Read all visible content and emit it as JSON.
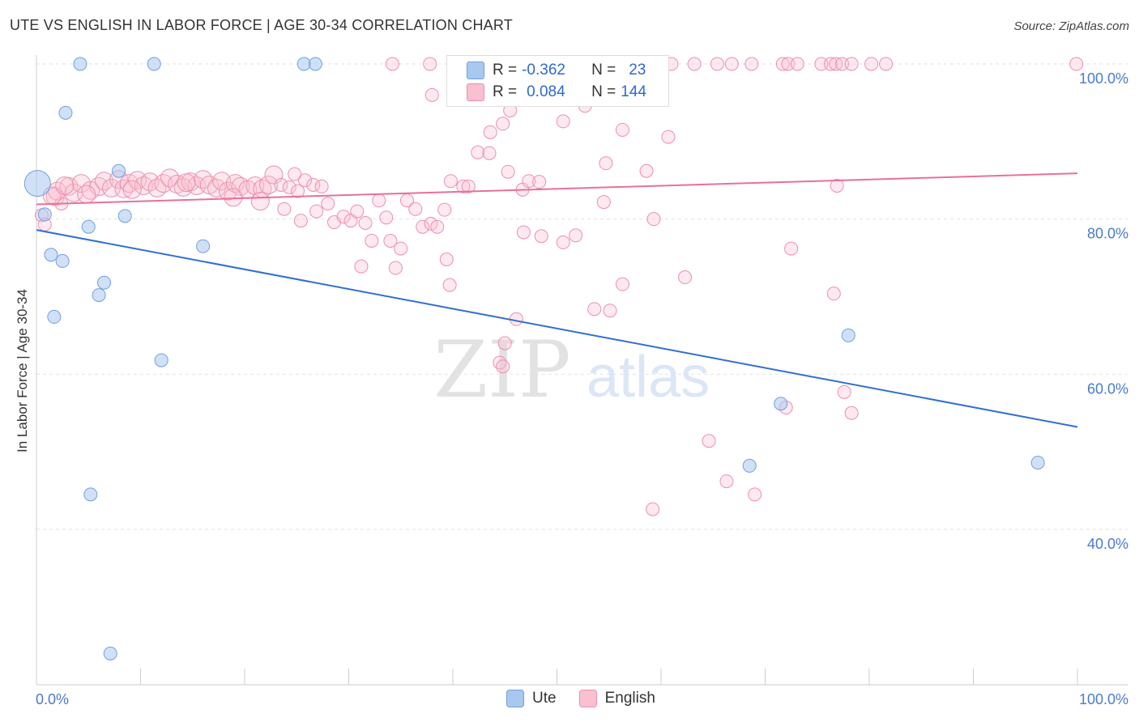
{
  "header": {
    "title": "UTE VS ENGLISH IN LABOR FORCE | AGE 30-34 CORRELATION CHART",
    "source": "Source: ZipAtlas.com"
  },
  "legend": {
    "rows": [
      {
        "r_label": "R =",
        "r_value": "-0.362",
        "n_label": "N =",
        "n_value": "23"
      },
      {
        "r_label": "R =",
        "r_value": "0.084",
        "n_label": "N =",
        "n_value": "144"
      }
    ],
    "series": [
      {
        "name": "Ute",
        "color": "#a9c8f0",
        "edge": "#6f9fe0"
      },
      {
        "name": "English",
        "color": "#f8c0d0",
        "edge": "#ec8fae"
      }
    ]
  },
  "watermark": {
    "part1": "ZIP",
    "part2": "atlas"
  },
  "chart_data": {
    "type": "scatter",
    "ylabel": "In Labor Force | Age 30-34",
    "xlim": [
      0,
      100
    ],
    "ylim": [
      20,
      100
    ],
    "x_tick_labels": [
      "0.0%",
      "100.0%"
    ],
    "y_ticks": [
      {
        "value": 100,
        "label": "100.0%"
      },
      {
        "value": 80,
        "label": "80.0%"
      },
      {
        "value": 60,
        "label": "60.0%"
      },
      {
        "value": 40,
        "label": "40.0%"
      }
    ],
    "grid": "horizontal dashed",
    "colors": {
      "ute_line": "#2f6fd0",
      "english_line": "#e87099"
    },
    "series": [
      {
        "name": "Ute",
        "trend": {
          "x": [
            0,
            100
          ],
          "y": [
            78.6,
            53.2
          ]
        },
        "points": [
          [
            4.2,
            100
          ],
          [
            11.3,
            100
          ],
          [
            25.7,
            100
          ],
          [
            26.8,
            100
          ],
          [
            2.8,
            93.7
          ],
          [
            0.1,
            84.6
          ],
          [
            7.9,
            86.2
          ],
          [
            0.8,
            80.6
          ],
          [
            8.5,
            80.4
          ],
          [
            5.0,
            79.0
          ],
          [
            16.0,
            76.5
          ],
          [
            1.4,
            75.4
          ],
          [
            2.5,
            74.6
          ],
          [
            6.5,
            71.8
          ],
          [
            6.0,
            70.2
          ],
          [
            1.7,
            67.4
          ],
          [
            12.0,
            61.8
          ],
          [
            78.0,
            65.0
          ],
          [
            71.5,
            56.2
          ],
          [
            68.5,
            48.2
          ],
          [
            96.2,
            48.6
          ],
          [
            5.2,
            44.5
          ],
          [
            7.1,
            24.0
          ]
        ]
      },
      {
        "name": "English",
        "trend": {
          "x": [
            0,
            100
          ],
          "y": [
            81.9,
            85.9
          ]
        },
        "points": [
          [
            51.7,
            100
          ],
          [
            54.5,
            100
          ],
          [
            55.4,
            100
          ],
          [
            58.3,
            100
          ],
          [
            61.0,
            100
          ],
          [
            63.2,
            100
          ],
          [
            65.4,
            100
          ],
          [
            66.8,
            100
          ],
          [
            68.7,
            100
          ],
          [
            71.7,
            100
          ],
          [
            72.2,
            100
          ],
          [
            73.1,
            100
          ],
          [
            75.4,
            100
          ],
          [
            76.3,
            100
          ],
          [
            76.8,
            100
          ],
          [
            77.4,
            100
          ],
          [
            78.3,
            100
          ],
          [
            80.2,
            100
          ],
          [
            81.6,
            100
          ],
          [
            99.9,
            100
          ],
          [
            34.2,
            100
          ],
          [
            37.8,
            100
          ],
          [
            43.0,
            100
          ],
          [
            48.6,
            100
          ],
          [
            52.3,
            100
          ],
          [
            38.0,
            96.0
          ],
          [
            49.1,
            95.5
          ],
          [
            52.7,
            94.6
          ],
          [
            45.5,
            94.0
          ],
          [
            50.6,
            92.6
          ],
          [
            44.8,
            92.3
          ],
          [
            43.6,
            91.2
          ],
          [
            42.4,
            88.6
          ],
          [
            43.5,
            88.5
          ],
          [
            54.7,
            87.2
          ],
          [
            45.3,
            86.1
          ],
          [
            56.3,
            91.5
          ],
          [
            60.7,
            90.6
          ],
          [
            58.6,
            86.2
          ],
          [
            0.5,
            80.5
          ],
          [
            0.8,
            79.3
          ],
          [
            1.8,
            82.9
          ],
          [
            2.4,
            82.0
          ],
          [
            2.0,
            83.6
          ],
          [
            3.1,
            84.2
          ],
          [
            3.6,
            83.4
          ],
          [
            4.3,
            84.6
          ],
          [
            5.2,
            83.7
          ],
          [
            6.0,
            84.2
          ],
          [
            6.5,
            84.9
          ],
          [
            7.2,
            84.0
          ],
          [
            7.9,
            85.1
          ],
          [
            8.4,
            83.9
          ],
          [
            8.9,
            84.6
          ],
          [
            9.7,
            85.0
          ],
          [
            10.3,
            84.3
          ],
          [
            10.9,
            84.8
          ],
          [
            11.6,
            84.0
          ],
          [
            12.2,
            84.6
          ],
          [
            12.8,
            85.3
          ],
          [
            13.5,
            84.5
          ],
          [
            14.1,
            84.1
          ],
          [
            14.8,
            84.8
          ],
          [
            15.4,
            84.3
          ],
          [
            16.0,
            85.1
          ],
          [
            16.6,
            84.4
          ],
          [
            17.3,
            84.0
          ],
          [
            17.8,
            84.9
          ],
          [
            18.4,
            83.6
          ],
          [
            19.1,
            84.6
          ],
          [
            19.6,
            84.2
          ],
          [
            20.3,
            83.8
          ],
          [
            21.0,
            84.3
          ],
          [
            21.7,
            83.9
          ],
          [
            22.3,
            84.4
          ],
          [
            1.5,
            83.0
          ],
          [
            2.7,
            84.3
          ],
          [
            4.8,
            83.2
          ],
          [
            9.2,
            83.8
          ],
          [
            14.4,
            84.7
          ],
          [
            18.9,
            82.8
          ],
          [
            21.5,
            82.3
          ],
          [
            22.8,
            85.7
          ],
          [
            23.5,
            84.4
          ],
          [
            24.3,
            84.1
          ],
          [
            25.1,
            83.6
          ],
          [
            25.8,
            85.0
          ],
          [
            26.6,
            84.4
          ],
          [
            27.4,
            84.2
          ],
          [
            24.8,
            85.8
          ],
          [
            23.8,
            81.3
          ],
          [
            25.4,
            79.8
          ],
          [
            26.9,
            81.0
          ],
          [
            28.0,
            82.0
          ],
          [
            28.6,
            79.6
          ],
          [
            29.5,
            80.3
          ],
          [
            30.2,
            79.8
          ],
          [
            30.8,
            81.0
          ],
          [
            31.6,
            79.5
          ],
          [
            32.2,
            77.2
          ],
          [
            32.9,
            82.4
          ],
          [
            33.6,
            80.2
          ],
          [
            34.0,
            77.2
          ],
          [
            35.0,
            76.2
          ],
          [
            35.6,
            82.4
          ],
          [
            36.4,
            81.3
          ],
          [
            37.1,
            79.0
          ],
          [
            37.9,
            79.4
          ],
          [
            38.5,
            79.0
          ],
          [
            39.2,
            81.2
          ],
          [
            39.8,
            84.9
          ],
          [
            41.0,
            84.2
          ],
          [
            41.5,
            84.2
          ],
          [
            31.2,
            73.9
          ],
          [
            34.5,
            73.7
          ],
          [
            39.4,
            74.8
          ],
          [
            39.7,
            71.5
          ],
          [
            46.8,
            78.3
          ],
          [
            48.5,
            77.8
          ],
          [
            50.6,
            77.0
          ],
          [
            51.8,
            77.9
          ],
          [
            46.7,
            83.8
          ],
          [
            47.3,
            84.9
          ],
          [
            48.3,
            84.8
          ],
          [
            54.5,
            82.2
          ],
          [
            59.3,
            80.0
          ],
          [
            72.5,
            76.2
          ],
          [
            76.6,
            70.4
          ],
          [
            77.6,
            57.7
          ],
          [
            46.1,
            67.1
          ],
          [
            45.0,
            64.0
          ],
          [
            44.5,
            61.5
          ],
          [
            44.8,
            61.0
          ],
          [
            53.6,
            68.4
          ],
          [
            55.1,
            68.2
          ],
          [
            56.3,
            71.6
          ],
          [
            62.3,
            72.5
          ],
          [
            64.6,
            51.4
          ],
          [
            66.3,
            46.2
          ],
          [
            69.0,
            44.5
          ],
          [
            59.2,
            42.6
          ],
          [
            72.0,
            55.7
          ],
          [
            78.3,
            55.0
          ],
          [
            76.9,
            84.3
          ]
        ]
      }
    ]
  }
}
